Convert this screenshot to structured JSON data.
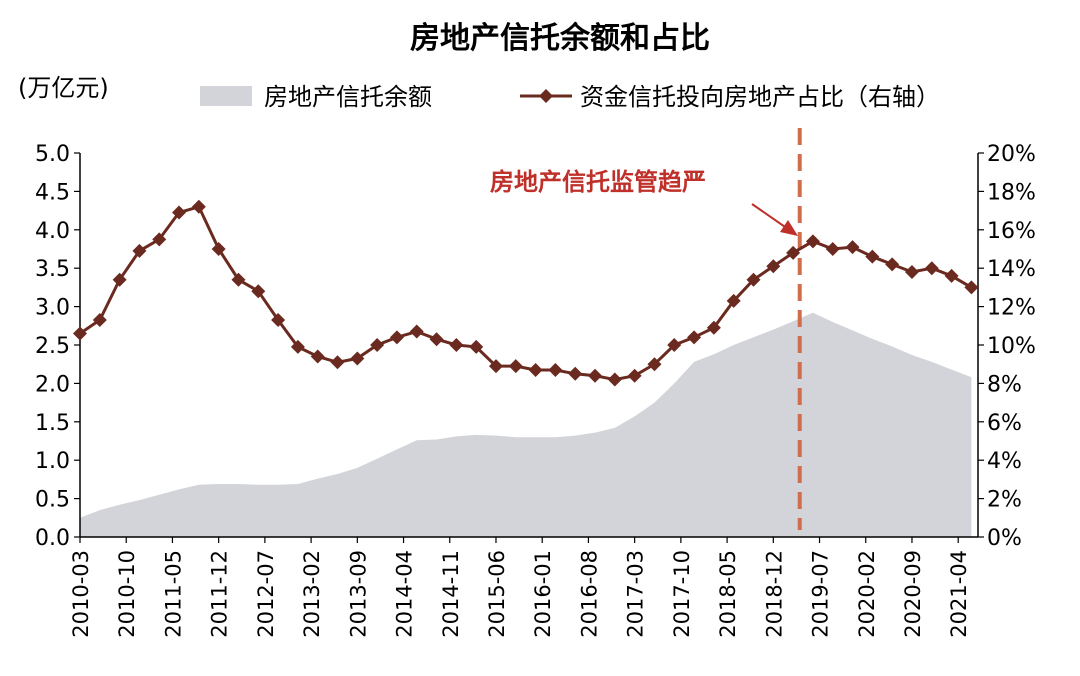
{
  "chart_data": {
    "type": "line",
    "title": "房地产信托余额和占比",
    "y_unit_label": "(万亿元)",
    "ylim_left": [
      0,
      5
    ],
    "ylim_right": [
      0,
      20
    ],
    "yticks_left": [
      "0.0",
      "0.5",
      "1.0",
      "1.5",
      "2.0",
      "2.5",
      "3.0",
      "3.5",
      "4.0",
      "4.5",
      "5.0"
    ],
    "yticks_right": [
      "0%",
      "2%",
      "4%",
      "6%",
      "8%",
      "10%",
      "12%",
      "14%",
      "16%",
      "18%",
      "20%"
    ],
    "x_tick_labels": [
      "2010-03",
      "2010-10",
      "2011-05",
      "2011-12",
      "2012-07",
      "2013-02",
      "2013-09",
      "2014-04",
      "2014-11",
      "2015-06",
      "2016-01",
      "2016-08",
      "2017-03",
      "2017-10",
      "2018-05",
      "2018-12",
      "2019-07",
      "2020-02",
      "2020-09",
      "2021-04"
    ],
    "legend_position": "top",
    "grid": false,
    "series": [
      {
        "name": "房地产信托余额",
        "type": "area",
        "axis": "left",
        "color": "#d3d4d9",
        "points": [
          [
            "2010-03",
            0.25
          ],
          [
            "2010-06",
            0.35
          ],
          [
            "2010-09",
            0.42
          ],
          [
            "2010-12",
            0.48
          ],
          [
            "2011-03",
            0.55
          ],
          [
            "2011-06",
            0.62
          ],
          [
            "2011-09",
            0.68
          ],
          [
            "2011-12",
            0.69
          ],
          [
            "2012-03",
            0.69
          ],
          [
            "2012-06",
            0.68
          ],
          [
            "2012-09",
            0.68
          ],
          [
            "2012-12",
            0.69
          ],
          [
            "2013-03",
            0.76
          ],
          [
            "2013-06",
            0.82
          ],
          [
            "2013-09",
            0.9
          ],
          [
            "2013-12",
            1.02
          ],
          [
            "2014-03",
            1.14
          ],
          [
            "2014-06",
            1.26
          ],
          [
            "2014-09",
            1.27
          ],
          [
            "2014-12",
            1.31
          ],
          [
            "2015-03",
            1.33
          ],
          [
            "2015-06",
            1.32
          ],
          [
            "2015-09",
            1.3
          ],
          [
            "2015-12",
            1.3
          ],
          [
            "2016-03",
            1.3
          ],
          [
            "2016-06",
            1.32
          ],
          [
            "2016-09",
            1.36
          ],
          [
            "2016-12",
            1.42
          ],
          [
            "2017-03",
            1.57
          ],
          [
            "2017-06",
            1.75
          ],
          [
            "2017-09",
            2.0
          ],
          [
            "2017-12",
            2.28
          ],
          [
            "2018-03",
            2.38
          ],
          [
            "2018-06",
            2.5
          ],
          [
            "2018-09",
            2.6
          ],
          [
            "2018-12",
            2.7
          ],
          [
            "2019-03",
            2.81
          ],
          [
            "2019-06",
            2.92
          ],
          [
            "2019-09",
            2.8
          ],
          [
            "2019-12",
            2.69
          ],
          [
            "2020-03",
            2.58
          ],
          [
            "2020-06",
            2.48
          ],
          [
            "2020-09",
            2.37
          ],
          [
            "2020-12",
            2.28
          ],
          [
            "2021-03",
            2.18
          ],
          [
            "2021-06",
            2.08
          ]
        ]
      },
      {
        "name": "资金信托投向房地产占比（右轴）",
        "type": "line",
        "axis": "right",
        "color": "#6b2a1f",
        "marker": "diamond",
        "points": [
          [
            "2010-03",
            10.6
          ],
          [
            "2010-06",
            11.3
          ],
          [
            "2010-09",
            13.4
          ],
          [
            "2010-12",
            14.9
          ],
          [
            "2011-03",
            15.5
          ],
          [
            "2011-06",
            16.9
          ],
          [
            "2011-09",
            17.2
          ],
          [
            "2011-12",
            15.0
          ],
          [
            "2012-03",
            13.4
          ],
          [
            "2012-06",
            12.8
          ],
          [
            "2012-09",
            11.3
          ],
          [
            "2012-12",
            9.9
          ],
          [
            "2013-03",
            9.4
          ],
          [
            "2013-06",
            9.1
          ],
          [
            "2013-09",
            9.3
          ],
          [
            "2013-12",
            10.0
          ],
          [
            "2014-03",
            10.4
          ],
          [
            "2014-06",
            10.7
          ],
          [
            "2014-09",
            10.3
          ],
          [
            "2014-12",
            10.0
          ],
          [
            "2015-03",
            9.9
          ],
          [
            "2015-06",
            8.9
          ],
          [
            "2015-09",
            8.9
          ],
          [
            "2015-12",
            8.7
          ],
          [
            "2016-03",
            8.7
          ],
          [
            "2016-06",
            8.5
          ],
          [
            "2016-09",
            8.4
          ],
          [
            "2016-12",
            8.2
          ],
          [
            "2017-03",
            8.4
          ],
          [
            "2017-06",
            9.0
          ],
          [
            "2017-09",
            10.0
          ],
          [
            "2017-12",
            10.4
          ],
          [
            "2018-03",
            10.9
          ],
          [
            "2018-06",
            12.3
          ],
          [
            "2018-09",
            13.4
          ],
          [
            "2018-12",
            14.1
          ],
          [
            "2019-03",
            14.8
          ],
          [
            "2019-06",
            15.4
          ],
          [
            "2019-09",
            15.0
          ],
          [
            "2019-12",
            15.1
          ],
          [
            "2020-03",
            14.6
          ],
          [
            "2020-06",
            14.2
          ],
          [
            "2020-09",
            13.8
          ],
          [
            "2020-12",
            14.0
          ],
          [
            "2021-03",
            13.6
          ],
          [
            "2021-06",
            13.0
          ]
        ]
      }
    ],
    "annotation": {
      "text": "房地产信托监管趋严",
      "x": "2019-04",
      "style": "dashed-vertical-line",
      "line_color": "#d06d4c",
      "text_color": "#c0302a"
    }
  }
}
